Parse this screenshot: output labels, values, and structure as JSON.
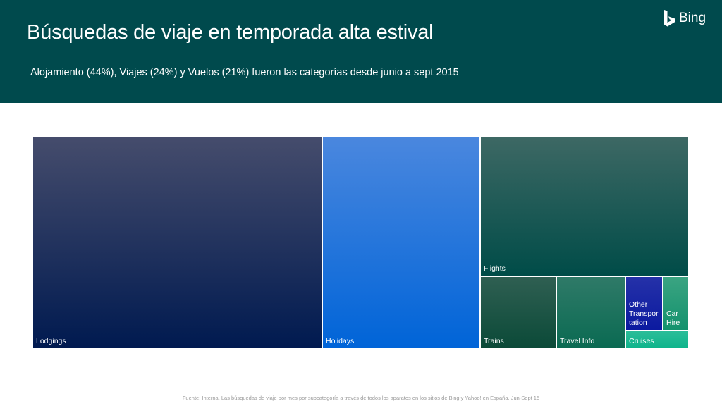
{
  "header": {
    "title": "Búsquedas de viaje en temporada alta estival",
    "subtitle": "Alojamiento (44%), Viajes (24%) y Vuelos (21%) fueron las categorías desde junio a sept 2015",
    "brand": "Bing",
    "brand_icon": "bing-logo-icon"
  },
  "chart_data": {
    "type": "treemap",
    "items": [
      {
        "label": "Lodgings",
        "color_top": "#454c6c",
        "color_bottom": "#001a50"
      },
      {
        "label": "Holidays",
        "color_top": "#4a87de",
        "color_bottom": "#0064d8"
      },
      {
        "label": "Flights",
        "color_top": "#3d6864",
        "color_bottom": "#004c48"
      },
      {
        "label": "Trains",
        "color_top": "#2f5f52",
        "color_bottom": "#0b4a38"
      },
      {
        "label": "Travel Info",
        "color_top": "#2f7a68",
        "color_bottom": "#0a6a52"
      },
      {
        "label": "Other Transportation",
        "display": "Other\nTranspor\ntation",
        "color_top": "#2531a8",
        "color_bottom": "#0b1aa0"
      },
      {
        "label": "Car Hire",
        "display": "Car\nHire",
        "color_top": "#3ba482",
        "color_bottom": "#13926d"
      },
      {
        "label": "Cruises",
        "color_top": "#2bbd99",
        "color_bottom": "#0eb48b"
      }
    ]
  },
  "footer": {
    "source": "Fuente: Interna. Las búsquedas de viaje por mes por subcategoría a través de todos los aparatos en los sitios de Bing y Yahoo! en España, Jun-Sept 15"
  }
}
